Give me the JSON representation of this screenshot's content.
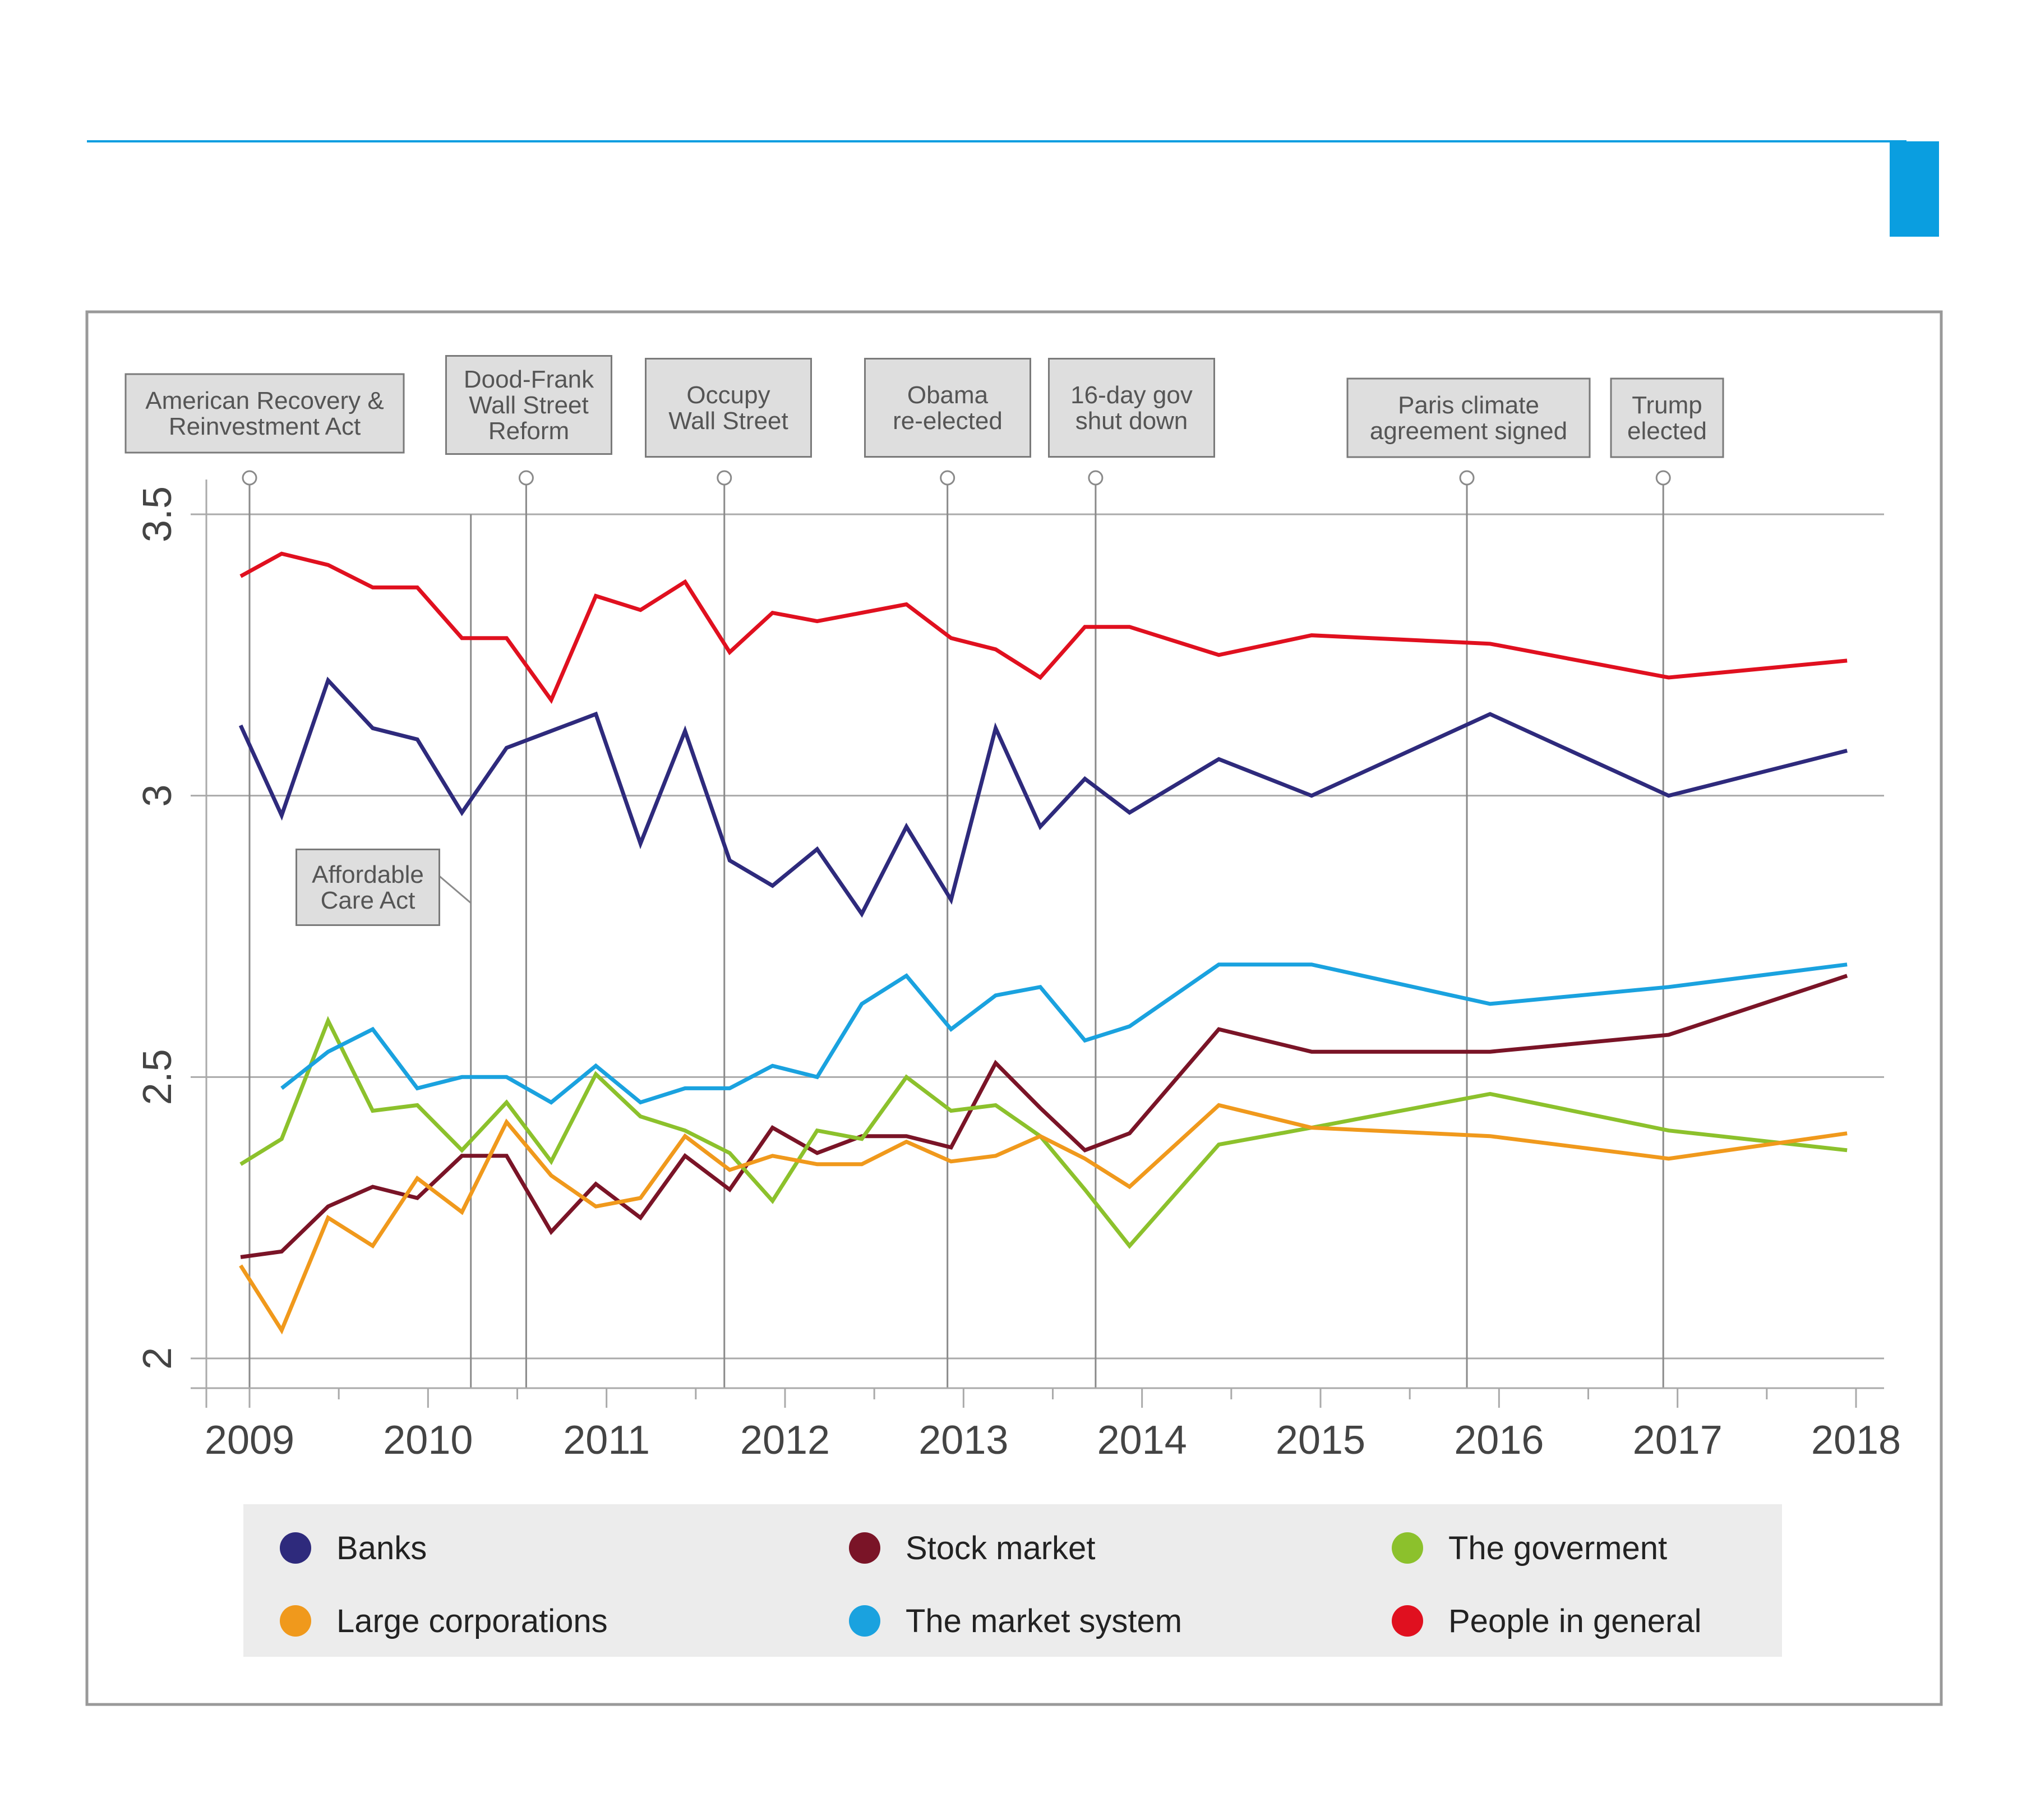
{
  "colors": {
    "accent": "#0a9ee0",
    "frame": "#999999",
    "grid": "#aaaaaa",
    "annotation_fill": "#dedede",
    "legend_bg": "#ececec",
    "banks": "#2e2a7c",
    "stock_market": "#7a1427",
    "government": "#8cc12c",
    "large_corporations": "#f0991c",
    "market_system": "#1aa2df",
    "people": "#e0101f"
  },
  "chart_data": {
    "type": "line",
    "title": "",
    "xlabel": "",
    "ylabel": "",
    "xlim": [
      2009,
      2018
    ],
    "ylim": [
      1.95,
      3.56
    ],
    "x_ticks": [
      "2009",
      "2010",
      "2011",
      "2012",
      "2013",
      "2014",
      "2015",
      "2016",
      "2017",
      "2018"
    ],
    "y_ticks": [
      "2",
      "2.5",
      "3",
      "3.5"
    ],
    "x": [
      2008.95,
      2009.18,
      2009.44,
      2009.69,
      2009.94,
      2010.19,
      2010.44,
      2010.69,
      2010.94,
      2011.19,
      2011.44,
      2011.69,
      2011.93,
      2012.18,
      2012.43,
      2012.68,
      2012.93,
      2013.18,
      2013.43,
      2013.68,
      2013.93,
      2014.43,
      2014.95,
      2015.95,
      2016.95,
      2017.95
    ],
    "series": [
      {
        "key": "banks",
        "name": "Banks",
        "values": [
          3.125,
          2.965,
          3.205,
          3.12,
          3.1,
          2.97,
          3.085,
          3.115,
          3.145,
          2.915,
          3.115,
          2.885,
          2.84,
          2.905,
          2.79,
          2.945,
          2.815,
          3.12,
          2.945,
          3.03,
          2.97,
          3.065,
          3.0,
          3.145,
          3.0,
          3.08
        ]
      },
      {
        "key": "stock_market",
        "name": "Stock market",
        "values": [
          2.18,
          2.19,
          2.27,
          2.305,
          2.285,
          2.36,
          2.36,
          2.225,
          2.31,
          2.25,
          2.36,
          2.3,
          2.41,
          2.365,
          2.395,
          2.395,
          2.375,
          2.525,
          2.445,
          2.37,
          2.4,
          2.585,
          2.545,
          2.545,
          2.575,
          2.68
        ]
      },
      {
        "key": "government",
        "name": "The goverment",
        "values": [
          2.345,
          2.39,
          2.6,
          2.44,
          2.45,
          2.37,
          2.455,
          2.35,
          2.505,
          2.43,
          2.405,
          2.365,
          2.28,
          2.405,
          2.39,
          2.5,
          2.44,
          2.45,
          2.395,
          2.3,
          2.2,
          2.38,
          2.41,
          2.47,
          2.405,
          2.37
        ]
      },
      {
        "key": "large_corporations",
        "name": "Large corporations",
        "values": [
          2.165,
          2.05,
          2.25,
          2.2,
          2.32,
          2.26,
          2.42,
          2.325,
          2.27,
          2.285,
          2.395,
          2.335,
          2.36,
          2.345,
          2.345,
          2.385,
          2.35,
          2.36,
          2.395,
          2.355,
          2.305,
          2.45,
          2.41,
          2.395,
          2.355,
          2.4
        ]
      },
      {
        "key": "market_system",
        "name": "The market system",
        "values": [
          null,
          2.48,
          2.545,
          2.585,
          2.48,
          2.5,
          2.5,
          2.455,
          2.52,
          2.455,
          2.48,
          2.48,
          2.52,
          2.5,
          2.63,
          2.68,
          2.585,
          2.645,
          2.66,
          2.565,
          2.59,
          2.7,
          2.7,
          2.63,
          2.66,
          2.7
        ]
      },
      {
        "key": "people",
        "name": "People in general",
        "values": [
          3.39,
          3.43,
          3.41,
          3.37,
          3.37,
          3.28,
          3.28,
          3.17,
          3.355,
          3.33,
          3.38,
          3.255,
          3.325,
          3.31,
          3.325,
          3.34,
          3.28,
          3.26,
          3.21,
          3.3,
          3.3,
          3.25,
          3.285,
          3.27,
          3.21,
          3.24
        ]
      }
    ],
    "annotations": [
      {
        "key": "recovery_act",
        "x": 2009.0,
        "label_lines": [
          "American Recovery &",
          "Reinvestment Act"
        ]
      },
      {
        "key": "dodd_frank",
        "x": 2010.55,
        "label_lines": [
          "Dood-Frank",
          "Wall Street",
          "Reform"
        ]
      },
      {
        "key": "occupy",
        "x": 2011.66,
        "label_lines": [
          "Occupy",
          "Wall Street"
        ]
      },
      {
        "key": "obama",
        "x": 2012.91,
        "label_lines": [
          "Obama",
          "re-elected"
        ]
      },
      {
        "key": "shutdown",
        "x": 2013.74,
        "label_lines": [
          "16-day gov",
          "shut down"
        ]
      },
      {
        "key": "paris",
        "x": 2015.82,
        "label_lines": [
          "Paris climate",
          "agreement signed"
        ]
      },
      {
        "key": "trump",
        "x": 2016.92,
        "label_lines": [
          "Trump",
          "elected"
        ]
      },
      {
        "key": "aca",
        "x": 2010.24,
        "label_lines": [
          "Affordable",
          "Care Act"
        ]
      }
    ],
    "legend": [
      {
        "key": "banks",
        "label": "Banks"
      },
      {
        "key": "stock_market",
        "label": "Stock market"
      },
      {
        "key": "government",
        "label": "The goverment"
      },
      {
        "key": "large_corporations",
        "label": "Large corporations"
      },
      {
        "key": "market_system",
        "label": "The market system"
      },
      {
        "key": "people",
        "label": "People in general"
      }
    ]
  }
}
